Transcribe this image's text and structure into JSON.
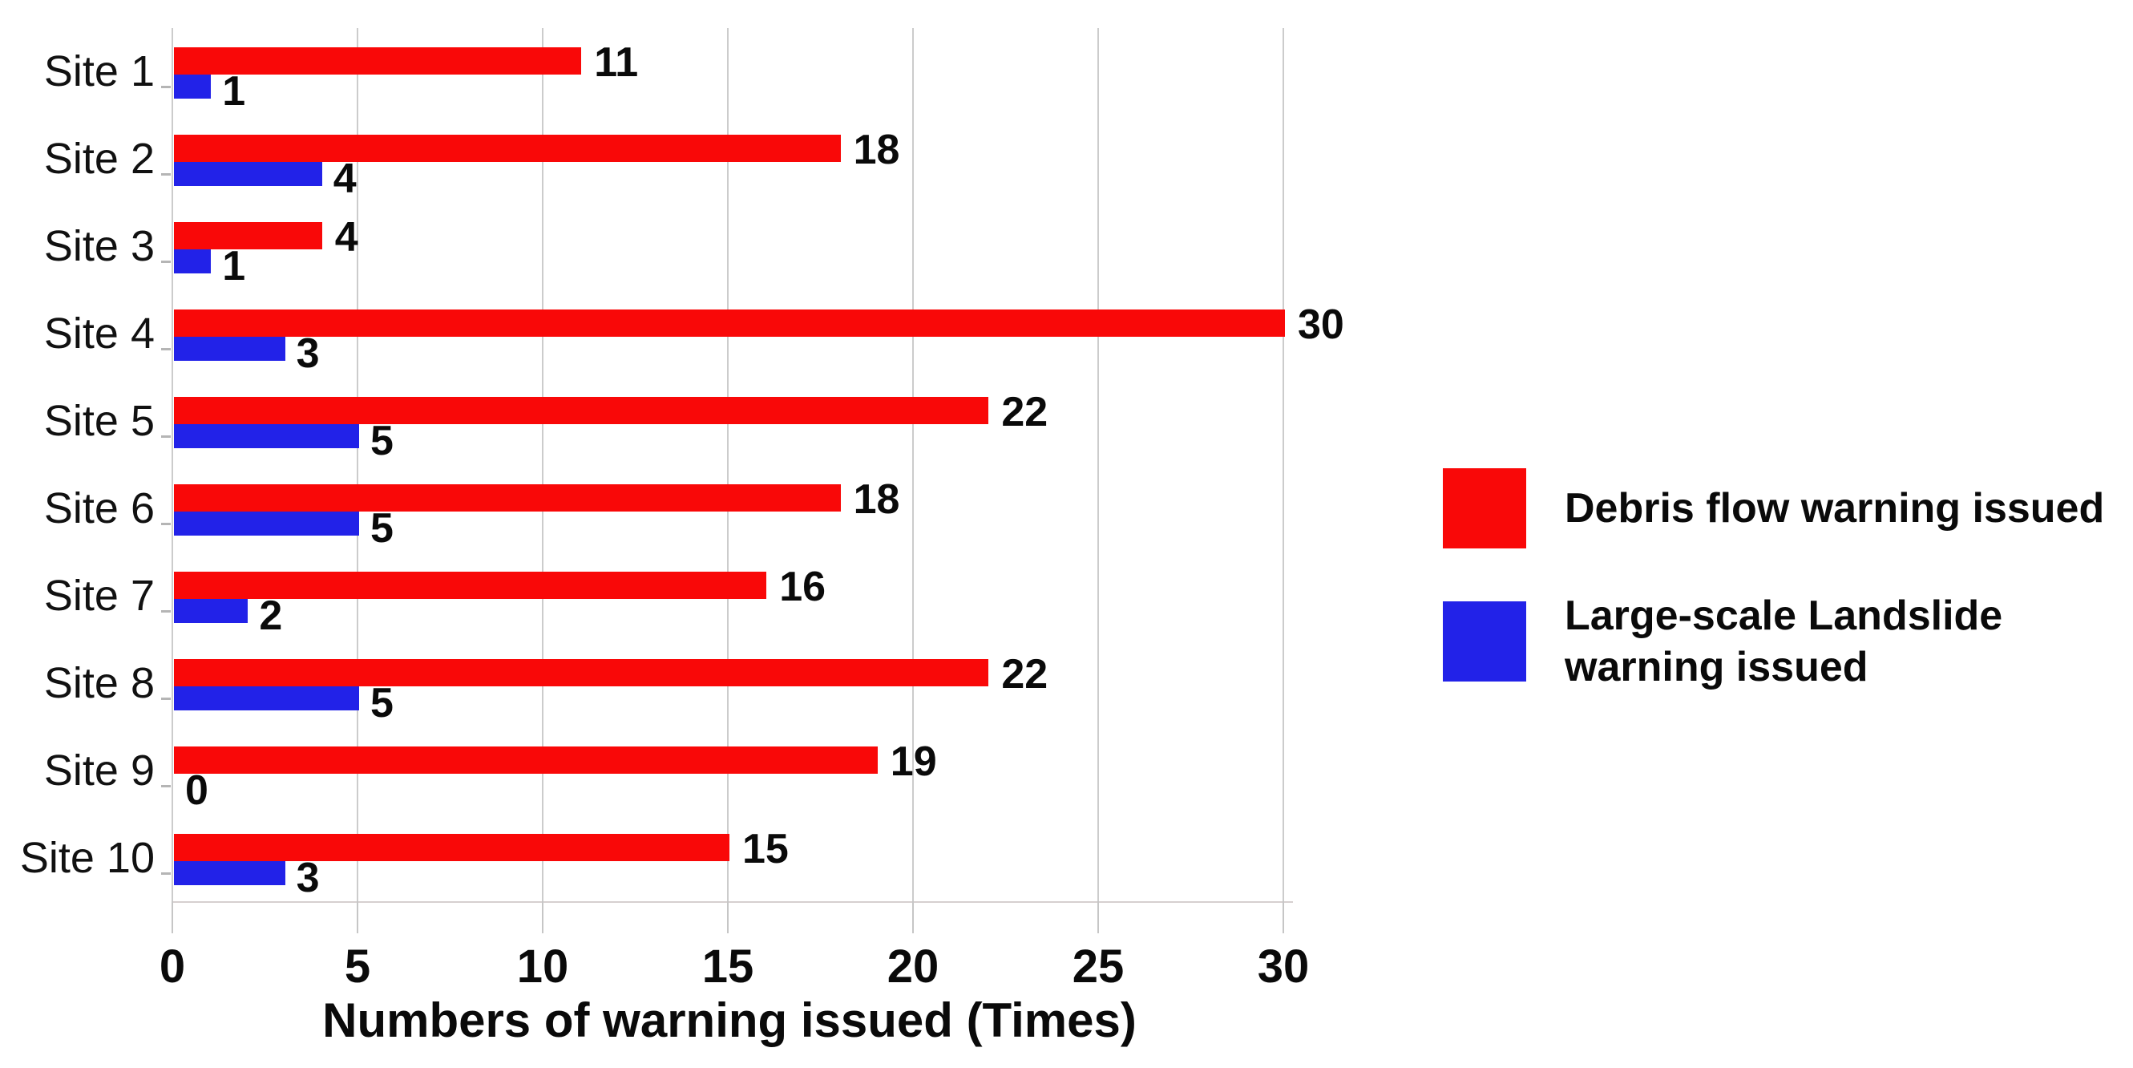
{
  "chart_data": {
    "type": "bar",
    "orientation": "horizontal",
    "title": "",
    "xlabel": "Numbers of warning issued (Times)",
    "ylabel": "",
    "xlim": [
      0,
      30
    ],
    "xticks": [
      0,
      5,
      10,
      15,
      20,
      25,
      30
    ],
    "grid": "vertical-gridlines-on",
    "legend_position": "right",
    "categories": [
      "Site 1",
      "Site 2",
      "Site 3",
      "Site 4",
      "Site 5",
      "Site 6",
      "Site 7",
      "Site 8",
      "Site 9",
      "Site 10"
    ],
    "series": [
      {
        "name": "Debris flow warning issued",
        "color": "#F90808",
        "values": [
          11,
          18,
          4,
          30,
          22,
          18,
          16,
          22,
          19,
          15
        ]
      },
      {
        "name": "Large-scale Landslide warning issued",
        "color": "#2222E8",
        "values": [
          1,
          4,
          1,
          3,
          5,
          5,
          2,
          5,
          0,
          3
        ]
      }
    ],
    "data_labels_shown": true
  },
  "legend": {
    "items": [
      {
        "color": "#F90808",
        "lines": [
          "Debris flow warning issued"
        ]
      },
      {
        "color": "#2222E8",
        "lines": [
          "Large-scale Landslide",
          "warning issued"
        ]
      }
    ]
  },
  "axis": {
    "title": "Numbers of warning issued (Times)"
  }
}
